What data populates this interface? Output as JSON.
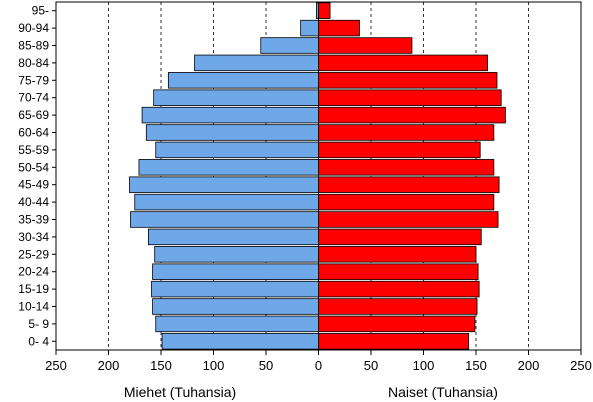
{
  "chart_data": {
    "type": "bar",
    "orientation": "horizontal-population-pyramid",
    "categories": [
      "0- 4",
      "5- 9",
      "10-14",
      "15-19",
      "20-24",
      "25-29",
      "30-34",
      "35-39",
      "40-44",
      "45-49",
      "50-54",
      "55-59",
      "60-64",
      "65-69",
      "70-74",
      "75-79",
      "80-84",
      "85-89",
      "90-94",
      "95-"
    ],
    "series": [
      {
        "name": "Miehet (Tuhansia)",
        "side": "left",
        "color": "#6FA8E8",
        "values": [
          149,
          155,
          158,
          159,
          158,
          156,
          162,
          179,
          175,
          180,
          171,
          155,
          164,
          168,
          157,
          143,
          118,
          55,
          17,
          2
        ]
      },
      {
        "name": "Naiset (Tuhansia)",
        "side": "right",
        "color": "#FF0000",
        "values": [
          143,
          149,
          151,
          153,
          152,
          150,
          155,
          171,
          167,
          172,
          167,
          154,
          167,
          178,
          174,
          170,
          161,
          89,
          39,
          11
        ]
      }
    ],
    "xlim": [
      -250,
      250
    ],
    "xticks": [
      "250",
      "200",
      "150",
      "100",
      "50",
      "0",
      "50",
      "100",
      "150",
      "200",
      "250"
    ],
    "xlabel_left": "Miehet (Tuhansia)",
    "xlabel_right": "Naiset (Tuhansia)",
    "grid": "vertical dashed"
  }
}
